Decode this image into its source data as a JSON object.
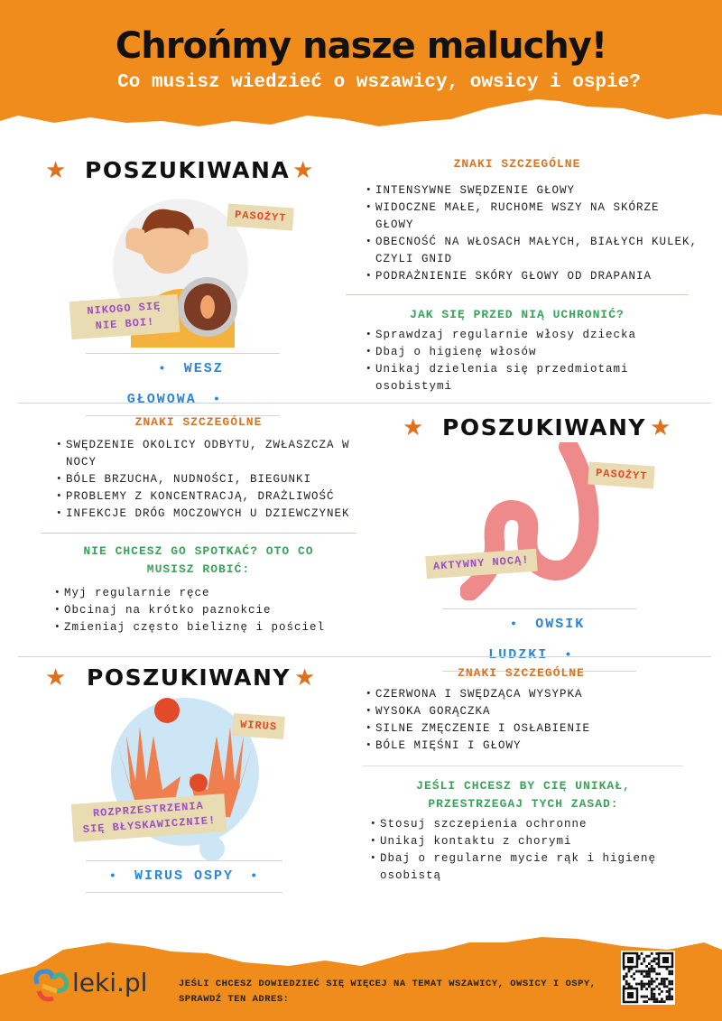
{
  "header": {
    "title": "Chrońmy nasze maluchy!",
    "subtitle": "Co musisz wiedzieć o wszawicy, owsicy i ospie?"
  },
  "colors": {
    "orange": "#ef8c1c",
    "signs_heading": "#d9731f",
    "prevention_heading": "#3aa35a",
    "name_label": "#2a86d6"
  },
  "sections": [
    {
      "wanted": "POSZUKIWANA",
      "tags": [
        "PASOŻYT",
        "NIKOGO SIĘ NIE BOI!"
      ],
      "name": "WESZ GŁOWOWA",
      "signs_title": "ZNAKI SZCZEGÓLNE",
      "signs": [
        "INTENSYWNE SWĘDZENIE GŁOWY",
        "WIDOCZNE MAŁE, RUCHOME WSZY NA SKÓRZE GŁOWY",
        "OBECNOŚĆ NA WŁOSACH MAŁYCH, BIAŁYCH KULEK, CZYLI GNID",
        "PODRAŻNIENIE SKÓRY GŁOWY OD DRAPANIA"
      ],
      "prevent_title": "JAK SIĘ PRZED NIĄ UCHRONIĆ?",
      "prevent": [
        "Sprawdzaj regularnie włosy dziecka",
        "Dbaj o higienę włosów",
        "Unikaj dzielenia się przedmiotami osobistymi"
      ]
    },
    {
      "wanted": "POSZUKIWANY",
      "tags": [
        "PASOŻYT",
        "AKTYWNY NOCĄ!"
      ],
      "name": "OWSIK LUDZKI",
      "signs_title": "ZNAKI SZCZEGÓLNE",
      "signs": [
        "SWĘDZENIE OKOLICY ODBYTU, ZWŁASZCZA W NOCY",
        "BÓLE BRZUCHA, NUDNOŚCI, BIEGUNKI",
        "PROBLEMY Z KONCENTRACJĄ, DRAŻLIWOŚĆ",
        "INFEKCJE DRÓG MOCZOWYCH U DZIEWCZYNEK"
      ],
      "prevent_title": "NIE CHCESZ GO SPOTKAĆ? OTO CO MUSISZ ROBIĆ:",
      "prevent": [
        "Myj regularnie ręce",
        "Obcinaj na krótko paznokcie",
        "Zmieniaj często bieliznę i pościel"
      ]
    },
    {
      "wanted": "POSZUKIWANY",
      "tags": [
        "WIRUS",
        "ROZPRZESTRZENIA SIĘ BŁYSKAWICZNIE!"
      ],
      "name": "WIRUS OSPY",
      "signs_title": "ZNAKI SZCZEGÓLNE",
      "signs": [
        "CZERWONA I SWĘDZĄCA WYSYPKA",
        "WYSOKA GORĄCZKA",
        "SILNE ZMĘCZENIE I OSŁABIENIE",
        "BÓLE MIĘŚNI I GŁOWY"
      ],
      "prevent_title": "JEŚLI CHCESZ BY CIĘ UNIKAŁ, PRZESTRZEGAJ TYCH ZASAD:",
      "prevent": [
        "Stosuj szczepienia ochronne",
        "Unikaj kontaktu z chorymi",
        "Dbaj o regularne mycie rąk i higienę osobistą"
      ]
    }
  ],
  "footer": {
    "logo": "leki.pl",
    "text": "JEŚLI CHCESZ DOWIEDZIEĆ SIĘ WIĘCEJ NA TEMAT WSZAWICY, OWSICY I OSPY, SPRAWDŹ TEN ADRES:"
  }
}
